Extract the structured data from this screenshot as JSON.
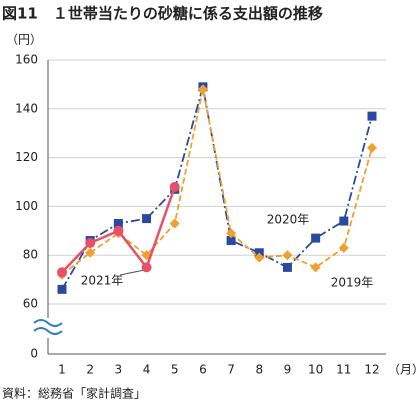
{
  "chart_data": {
    "type": "line",
    "title": "図11　１世帯当たりの砂糖に係る支出額の推移",
    "y_unit": "（円）",
    "x_unit": "（月）",
    "source": "資料：総務省「家計調査」",
    "categories": [
      "1",
      "2",
      "3",
      "4",
      "5",
      "6",
      "7",
      "8",
      "9",
      "10",
      "11",
      "12"
    ],
    "series": [
      {
        "name": "2020年",
        "color": "#2b4a9e",
        "marker": "square",
        "dash": "dashdot",
        "values": [
          66,
          86,
          93,
          95,
          107,
          149,
          86,
          81,
          75,
          87,
          94,
          137
        ]
      },
      {
        "name": "2019年",
        "color": "#f0a030",
        "marker": "diamond",
        "dash": "dashed",
        "values": [
          72,
          81,
          89,
          80,
          93,
          148,
          89,
          79,
          80,
          75,
          83,
          124
        ]
      },
      {
        "name": "2021年",
        "color": "#e8506a",
        "marker": "circle",
        "dash": "solid",
        "values": [
          73,
          85,
          90,
          75,
          108,
          null,
          null,
          null,
          null,
          null,
          null,
          null
        ]
      }
    ],
    "ylim": [
      0,
      160
    ],
    "yticks": [
      0,
      60,
      80,
      100,
      120,
      140,
      160
    ],
    "axis_break": true,
    "grid": true
  }
}
